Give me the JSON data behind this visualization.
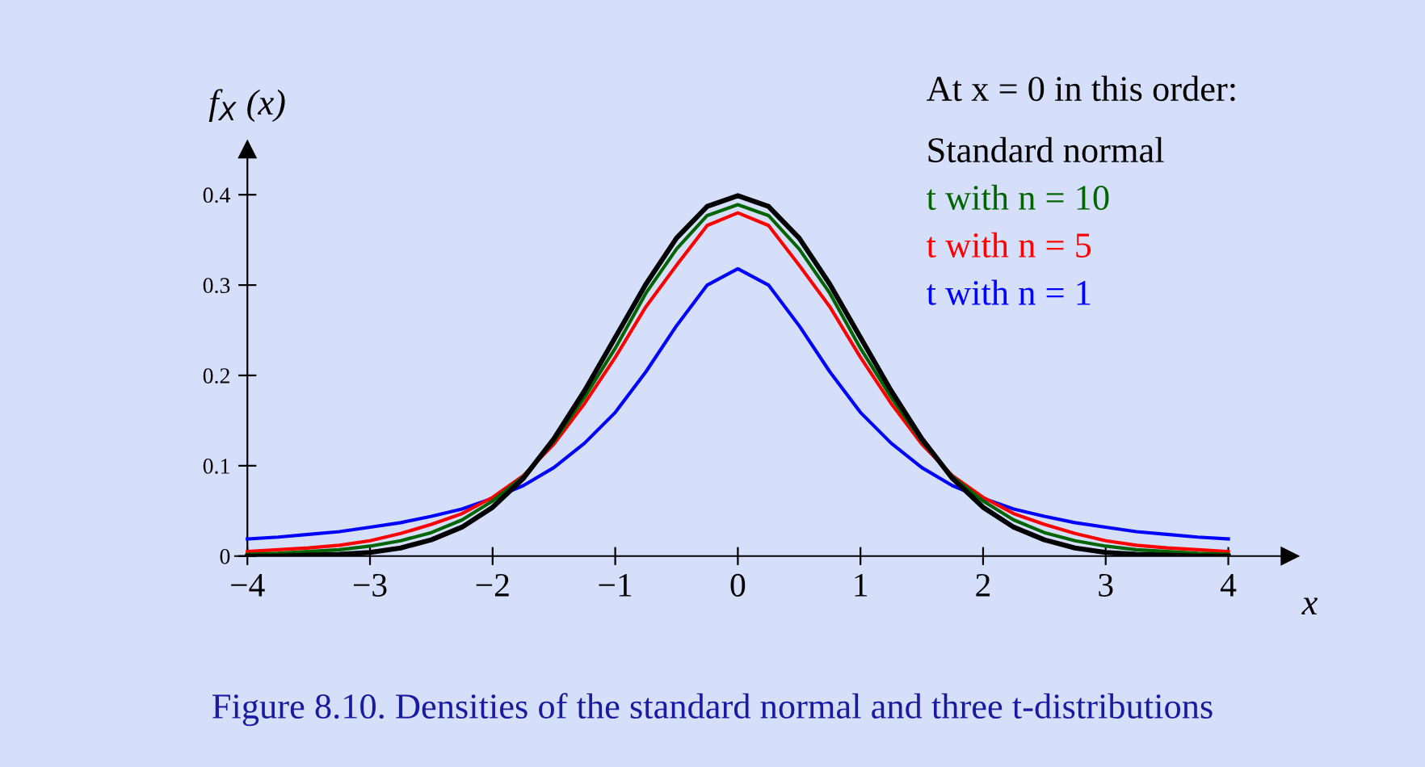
{
  "chart_data": {
    "type": "line",
    "title": "Figure 8.10. Densities of the standard normal and three t-distributions",
    "xlabel": "x",
    "ylabel": "f$_{X}$ (x)",
    "legend_title": "At x = 0 in this order:",
    "x": [
      -4,
      -3.75,
      -3.5,
      -3.25,
      -3,
      -2.75,
      -2.5,
      -2.25,
      -2,
      -1.75,
      -1.5,
      -1.25,
      -1,
      -0.75,
      -0.5,
      -0.25,
      0,
      0.25,
      0.5,
      0.75,
      1,
      1.25,
      1.5,
      1.75,
      2,
      2.25,
      2.5,
      2.75,
      3,
      3.25,
      3.5,
      3.75,
      4
    ],
    "series": [
      {
        "name": "Standard normal",
        "color": "#000000",
        "values": [
          0,
          0,
          0.001,
          0.002,
          0.004,
          0.009,
          0.018,
          0.032,
          0.054,
          0.086,
          0.13,
          0.183,
          0.242,
          0.301,
          0.352,
          0.387,
          0.399,
          0.387,
          0.352,
          0.301,
          0.242,
          0.183,
          0.13,
          0.086,
          0.054,
          0.032,
          0.018,
          0.009,
          0.004,
          0.002,
          0.001,
          0,
          0
        ]
      },
      {
        "name": "t with n = 10",
        "color": "#006400",
        "values": [
          0.002,
          0.003,
          0.005,
          0.007,
          0.011,
          0.017,
          0.026,
          0.04,
          0.061,
          0.088,
          0.127,
          0.176,
          0.23,
          0.291,
          0.34,
          0.377,
          0.389,
          0.377,
          0.34,
          0.291,
          0.23,
          0.176,
          0.127,
          0.088,
          0.061,
          0.04,
          0.026,
          0.017,
          0.011,
          0.007,
          0.005,
          0.003,
          0.002
        ]
      },
      {
        "name": "t with n = 5",
        "color": "#ff0000",
        "values": [
          0.005,
          0.007,
          0.009,
          0.012,
          0.017,
          0.025,
          0.035,
          0.047,
          0.065,
          0.089,
          0.124,
          0.169,
          0.22,
          0.276,
          0.322,
          0.366,
          0.38,
          0.366,
          0.322,
          0.276,
          0.22,
          0.169,
          0.124,
          0.089,
          0.065,
          0.047,
          0.035,
          0.025,
          0.017,
          0.012,
          0.009,
          0.007,
          0.005
        ]
      },
      {
        "name": "t with n = 1",
        "color": "#0000ff",
        "values": [
          0.019,
          0.021,
          0.024,
          0.027,
          0.032,
          0.037,
          0.044,
          0.052,
          0.064,
          0.078,
          0.098,
          0.125,
          0.159,
          0.204,
          0.255,
          0.3,
          0.318,
          0.3,
          0.255,
          0.204,
          0.159,
          0.125,
          0.098,
          0.078,
          0.064,
          0.052,
          0.044,
          0.037,
          0.032,
          0.027,
          0.024,
          0.021,
          0.019
        ]
      }
    ],
    "xlim": [
      -4.1,
      4.5
    ],
    "ylim": [
      0,
      0.45
    ],
    "xticks": [
      {
        "value": -4,
        "label": "−4"
      },
      {
        "value": -3,
        "label": "−3"
      },
      {
        "value": -2,
        "label": "−2"
      },
      {
        "value": -1,
        "label": "−1"
      },
      0,
      1,
      2,
      3,
      4
    ],
    "yticks": [
      0,
      0.1,
      0.2,
      0.3,
      0.4
    ],
    "legend": "top right",
    "grid": false,
    "marker": "none",
    "line_style": "solid"
  }
}
